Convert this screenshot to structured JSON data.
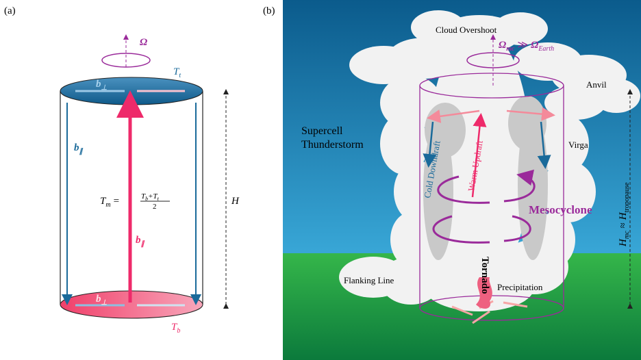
{
  "panel_a": {
    "label": "(a)",
    "omega": "Ω",
    "top_temp": {
      "main": "T",
      "sub": "t"
    },
    "bottom_temp": {
      "main": "T",
      "sub": "b"
    },
    "b_perp_top": {
      "main": "b",
      "sub": "⊥"
    },
    "b_perp_bottom": {
      "main": "b",
      "sub": "⊥"
    },
    "b_par_side": {
      "main": "b",
      "sub": "∥"
    },
    "b_par_center": {
      "main": "b",
      "sub": "∥"
    },
    "mean_temp": {
      "lhs": "T",
      "lhs_sub": "m",
      "eq": "=",
      "num": [
        "T",
        "b",
        "+T",
        "t"
      ],
      "den": "2"
    },
    "height": "H"
  },
  "panel_b": {
    "label": "(b)",
    "cloud_overshoot": "Cloud Overshoot",
    "omega_mc": {
      "main": "Ω",
      "sub": "mc",
      "rel": "≫",
      "main2": "Ω",
      "sub2": "Earth"
    },
    "anvil": "Anvil",
    "supercell": [
      "Supercell",
      "Thunderstorm"
    ],
    "cold_downdraft": "Cold Downdraft",
    "warm_updraft": "Warm Updraft",
    "virga": "Virga",
    "mesocyclone": "Mesocyclone",
    "tornado": "Tornado",
    "flanking_line": "Flanking Line",
    "precipitation": "Precipitation",
    "height_mc": {
      "main": "H",
      "sub": "mc",
      "rel": "≈",
      "main2": "H",
      "sub2": "tropopause"
    }
  }
}
